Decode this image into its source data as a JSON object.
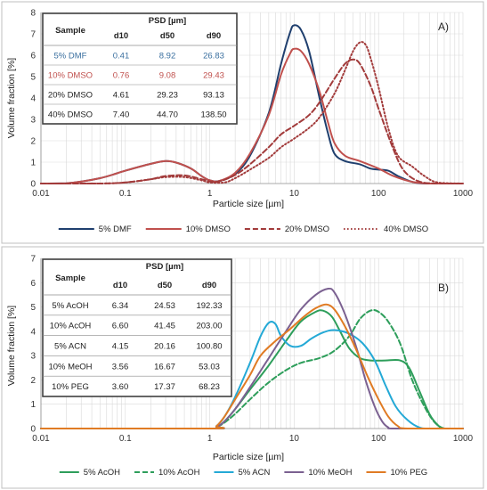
{
  "chart_data": [
    {
      "id": "A",
      "type": "line",
      "panel_label": "A)",
      "xlabel": "Particle size [µm]",
      "ylabel": "Volume fraction [%]",
      "xscale": "log",
      "xlim": [
        0.01,
        1000
      ],
      "ylim": [
        0,
        8
      ],
      "xticks": [
        "0.01",
        "0.1",
        "1",
        "10",
        "100",
        "1000"
      ],
      "yticks": [
        "0",
        "1",
        "2",
        "3",
        "4",
        "5",
        "6",
        "7",
        "8"
      ],
      "legend_position": "bottom",
      "series": [
        {
          "name": "5% DMF",
          "color": "#1f3f6e",
          "dash": "solid",
          "points": [
            [
              0.01,
              0
            ],
            [
              0.02,
              0.01
            ],
            [
              0.05,
              0.25
            ],
            [
              0.1,
              0.6
            ],
            [
              0.2,
              0.92
            ],
            [
              0.3,
              1.05
            ],
            [
              0.4,
              0.98
            ],
            [
              0.6,
              0.7
            ],
            [
              0.8,
              0.35
            ],
            [
              1,
              0.15
            ],
            [
              1.3,
              0.12
            ],
            [
              2,
              0.45
            ],
            [
              3,
              1.3
            ],
            [
              5,
              3.3
            ],
            [
              7,
              5.6
            ],
            [
              9,
              7.1
            ],
            [
              10,
              7.4
            ],
            [
              12,
              7.2
            ],
            [
              15,
              6.2
            ],
            [
              20,
              4.0
            ],
            [
              25,
              2.4
            ],
            [
              30,
              1.4
            ],
            [
              40,
              1.05
            ],
            [
              60,
              0.9
            ],
            [
              80,
              0.7
            ],
            [
              100,
              0.65
            ],
            [
              130,
              0.6
            ],
            [
              170,
              0.35
            ],
            [
              250,
              0.08
            ],
            [
              350,
              0
            ],
            [
              1000,
              0
            ]
          ]
        },
        {
          "name": "10% DMSO",
          "color": "#c0504d",
          "dash": "solid",
          "points": [
            [
              0.01,
              0
            ],
            [
              0.02,
              0.01
            ],
            [
              0.05,
              0.25
            ],
            [
              0.1,
              0.6
            ],
            [
              0.2,
              0.92
            ],
            [
              0.3,
              1.05
            ],
            [
              0.4,
              0.98
            ],
            [
              0.6,
              0.7
            ],
            [
              0.8,
              0.35
            ],
            [
              1,
              0.15
            ],
            [
              1.3,
              0.12
            ],
            [
              2,
              0.5
            ],
            [
              3,
              1.4
            ],
            [
              5,
              3.2
            ],
            [
              7,
              5.1
            ],
            [
              9,
              6.1
            ],
            [
              10,
              6.3
            ],
            [
              12,
              6.2
            ],
            [
              15,
              5.6
            ],
            [
              20,
              4.3
            ],
            [
              25,
              2.9
            ],
            [
              30,
              1.9
            ],
            [
              40,
              1.3
            ],
            [
              60,
              1.05
            ],
            [
              100,
              0.7
            ],
            [
              150,
              0.35
            ],
            [
              250,
              0.08
            ],
            [
              400,
              0
            ],
            [
              1000,
              0
            ]
          ]
        },
        {
          "name": "20% DMSO",
          "color": "#a23b3b",
          "dash": "dashed",
          "points": [
            [
              0.01,
              0
            ],
            [
              0.05,
              0
            ],
            [
              0.1,
              0.05
            ],
            [
              0.2,
              0.2
            ],
            [
              0.3,
              0.35
            ],
            [
              0.5,
              0.38
            ],
            [
              0.8,
              0.2
            ],
            [
              1,
              0.1
            ],
            [
              1.3,
              0.1
            ],
            [
              2,
              0.4
            ],
            [
              3,
              0.9
            ],
            [
              5,
              1.7
            ],
            [
              7,
              2.3
            ],
            [
              10,
              2.7
            ],
            [
              15,
              3.2
            ],
            [
              20,
              3.8
            ],
            [
              30,
              4.9
            ],
            [
              40,
              5.6
            ],
            [
              50,
              5.8
            ],
            [
              60,
              5.6
            ],
            [
              80,
              4.6
            ],
            [
              100,
              3.5
            ],
            [
              150,
              1.6
            ],
            [
              200,
              0.6
            ],
            [
              300,
              0.1
            ],
            [
              500,
              0
            ],
            [
              1000,
              0
            ]
          ]
        },
        {
          "name": "40% DMSO",
          "color": "#a23b3b",
          "dash": "dotted",
          "points": [
            [
              0.01,
              0
            ],
            [
              0.05,
              0
            ],
            [
              0.1,
              0.05
            ],
            [
              0.2,
              0.2
            ],
            [
              0.3,
              0.3
            ],
            [
              0.5,
              0.3
            ],
            [
              0.8,
              0.15
            ],
            [
              1,
              0.05
            ],
            [
              1.5,
              0.05
            ],
            [
              2,
              0.25
            ],
            [
              3,
              0.65
            ],
            [
              5,
              1.2
            ],
            [
              7,
              1.7
            ],
            [
              10,
              2.1
            ],
            [
              15,
              2.6
            ],
            [
              20,
              3.1
            ],
            [
              30,
              4.2
            ],
            [
              40,
              5.3
            ],
            [
              50,
              6.2
            ],
            [
              60,
              6.6
            ],
            [
              70,
              6.5
            ],
            [
              80,
              5.9
            ],
            [
              100,
              4.5
            ],
            [
              130,
              2.6
            ],
            [
              170,
              1.3
            ],
            [
              250,
              0.8
            ],
            [
              350,
              0.35
            ],
            [
              500,
              0.05
            ],
            [
              1000,
              0
            ]
          ]
        }
      ],
      "table": {
        "header_sample": "Sample",
        "header_group": "PSD [µm]",
        "columns": [
          "d10",
          "d50",
          "d90"
        ],
        "rows": [
          {
            "sample": "5% DMF",
            "d10": "0.41",
            "d50": "8.92",
            "d90": "26.83",
            "color": "#3a6f9f"
          },
          {
            "sample": "10% DMSO",
            "d10": "0.76",
            "d50": "9.08",
            "d90": "29.43",
            "color": "#c0504d"
          },
          {
            "sample": "20% DMSO",
            "d10": "4.61",
            "d50": "29.23",
            "d90": "93.13",
            "color": "#222222"
          },
          {
            "sample": "40% DMSO",
            "d10": "7.40",
            "d50": "44.70",
            "d90": "138.50",
            "color": "#222222"
          }
        ]
      }
    },
    {
      "id": "B",
      "type": "line",
      "panel_label": "B)",
      "xlabel": "Particle size [µm]",
      "ylabel": "Volume fraction [%]",
      "xscale": "log",
      "xlim": [
        0.01,
        1000
      ],
      "ylim": [
        0,
        7
      ],
      "xticks": [
        "0.01",
        "0.1",
        "1",
        "10",
        "100",
        "1000"
      ],
      "yticks": [
        "0",
        "1",
        "2",
        "3",
        "4",
        "5",
        "6",
        "7"
      ],
      "legend_position": "bottom",
      "series": [
        {
          "name": "5% AcOH",
          "color": "#2e9e5b",
          "dash": "solid",
          "points": [
            [
              0.01,
              0
            ],
            [
              1,
              0
            ],
            [
              1.2,
              0.05
            ],
            [
              1.5,
              0.3
            ],
            [
              2,
              0.8
            ],
            [
              3,
              1.6
            ],
            [
              5,
              2.6
            ],
            [
              8,
              3.6
            ],
            [
              12,
              4.4
            ],
            [
              18,
              4.8
            ],
            [
              22,
              4.85
            ],
            [
              28,
              4.6
            ],
            [
              35,
              4.0
            ],
            [
              45,
              3.3
            ],
            [
              60,
              2.9
            ],
            [
              80,
              2.8
            ],
            [
              120,
              2.8
            ],
            [
              180,
              2.8
            ],
            [
              230,
              2.5
            ],
            [
              300,
              1.6
            ],
            [
              400,
              0.6
            ],
            [
              500,
              0.15
            ],
            [
              600,
              0
            ],
            [
              1000,
              0
            ]
          ]
        },
        {
          "name": "10% AcOH",
          "color": "#2e9e5b",
          "dash": "dashed",
          "points": [
            [
              0.01,
              0
            ],
            [
              1,
              0
            ],
            [
              1.2,
              0.05
            ],
            [
              1.5,
              0.25
            ],
            [
              2,
              0.6
            ],
            [
              3,
              1.2
            ],
            [
              5,
              1.9
            ],
            [
              8,
              2.4
            ],
            [
              12,
              2.7
            ],
            [
              20,
              2.9
            ],
            [
              30,
              3.2
            ],
            [
              45,
              3.8
            ],
            [
              60,
              4.5
            ],
            [
              80,
              4.85
            ],
            [
              100,
              4.8
            ],
            [
              130,
              4.4
            ],
            [
              180,
              3.5
            ],
            [
              250,
              2.0
            ],
            [
              350,
              0.9
            ],
            [
              450,
              0.3
            ],
            [
              550,
              0.05
            ],
            [
              650,
              0
            ],
            [
              1000,
              0
            ]
          ]
        },
        {
          "name": "5% ACN",
          "color": "#24a9d6",
          "dash": "solid",
          "points": [
            [
              0.01,
              0
            ],
            [
              1,
              0
            ],
            [
              1.2,
              0.1
            ],
            [
              1.5,
              0.5
            ],
            [
              2,
              1.3
            ],
            [
              3,
              2.7
            ],
            [
              4,
              3.8
            ],
            [
              5,
              4.35
            ],
            [
              6,
              4.3
            ],
            [
              7,
              3.8
            ],
            [
              9,
              3.4
            ],
            [
              12,
              3.4
            ],
            [
              16,
              3.7
            ],
            [
              22,
              3.95
            ],
            [
              30,
              4.05
            ],
            [
              45,
              3.9
            ],
            [
              65,
              3.5
            ],
            [
              90,
              2.8
            ],
            [
              120,
              1.8
            ],
            [
              160,
              0.9
            ],
            [
              220,
              0.35
            ],
            [
              300,
              0.05
            ],
            [
              400,
              0
            ],
            [
              1000,
              0
            ]
          ]
        },
        {
          "name": "10% MeOH",
          "color": "#7b6191",
          "dash": "solid",
          "points": [
            [
              0.01,
              0
            ],
            [
              1,
              0
            ],
            [
              1.2,
              0.05
            ],
            [
              1.5,
              0.3
            ],
            [
              2,
              0.8
            ],
            [
              3,
              1.7
            ],
            [
              5,
              2.9
            ],
            [
              8,
              4.0
            ],
            [
              12,
              4.9
            ],
            [
              18,
              5.5
            ],
            [
              25,
              5.75
            ],
            [
              30,
              5.6
            ],
            [
              40,
              4.7
            ],
            [
              55,
              3.3
            ],
            [
              70,
              2.0
            ],
            [
              90,
              0.9
            ],
            [
              110,
              0.3
            ],
            [
              130,
              0.05
            ],
            [
              160,
              0
            ],
            [
              1000,
              0
            ]
          ]
        },
        {
          "name": "10% PEG",
          "color": "#e07b24",
          "dash": "solid",
          "points": [
            [
              0.01,
              0
            ],
            [
              1,
              0
            ],
            [
              1.2,
              0.1
            ],
            [
              1.5,
              0.5
            ],
            [
              2,
              1.2
            ],
            [
              3,
              2.2
            ],
            [
              4,
              3.0
            ],
            [
              6,
              3.6
            ],
            [
              9,
              4.1
            ],
            [
              13,
              4.6
            ],
            [
              18,
              4.95
            ],
            [
              24,
              5.1
            ],
            [
              30,
              4.9
            ],
            [
              40,
              4.2
            ],
            [
              55,
              3.2
            ],
            [
              75,
              2.1
            ],
            [
              100,
              1.2
            ],
            [
              130,
              0.5
            ],
            [
              170,
              0.1
            ],
            [
              220,
              0
            ],
            [
              1000,
              0
            ]
          ]
        }
      ],
      "table": {
        "header_sample": "Sample",
        "header_group": "PSD [µm]",
        "columns": [
          "d10",
          "d50",
          "d90"
        ],
        "rows": [
          {
            "sample": "5% AcOH",
            "d10": "6.34",
            "d50": "24.53",
            "d90": "192.33",
            "color": "#222222"
          },
          {
            "sample": "10% AcOH",
            "d10": "6.60",
            "d50": "41.45",
            "d90": "203.00",
            "color": "#222222"
          },
          {
            "sample": "5% ACN",
            "d10": "4.15",
            "d50": "20.16",
            "d90": "100.80",
            "color": "#222222"
          },
          {
            "sample": "10% MeOH",
            "d10": "3.56",
            "d50": "16.67",
            "d90": "53.03",
            "color": "#222222"
          },
          {
            "sample": "10% PEG",
            "d10": "3.60",
            "d50": "17.37",
            "d90": "68.23",
            "color": "#222222"
          }
        ]
      }
    }
  ]
}
